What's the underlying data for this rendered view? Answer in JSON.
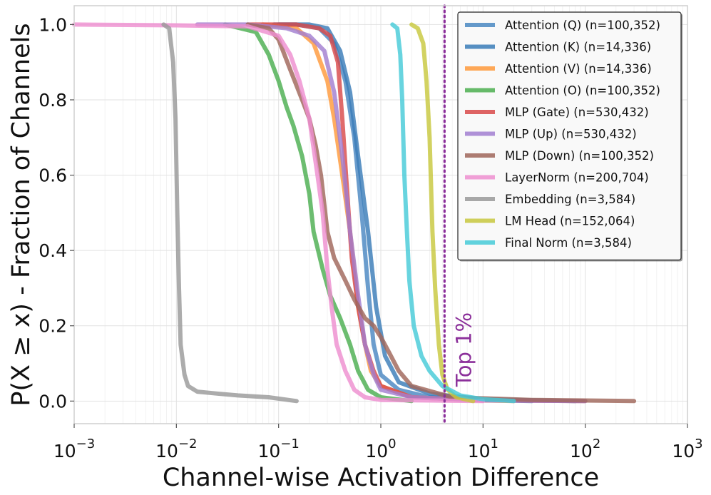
{
  "chart_data": {
    "type": "line",
    "xlabel": "Channel-wise Activation Difference",
    "ylabel": "P(X ≥ x) - Fraction of Channels",
    "x_scale": "log",
    "xlim": [
      0.001,
      1000
    ],
    "ylim": [
      -0.06,
      1.05
    ],
    "x_ticks": [
      {
        "value": 0.001,
        "base": "10",
        "exp": "−3"
      },
      {
        "value": 0.01,
        "base": "10",
        "exp": "−2"
      },
      {
        "value": 0.1,
        "base": "10",
        "exp": "−1"
      },
      {
        "value": 1,
        "base": "10",
        "exp": "0"
      },
      {
        "value": 10,
        "base": "10",
        "exp": "1"
      },
      {
        "value": 100,
        "base": "10",
        "exp": "2"
      },
      {
        "value": 1000,
        "base": "10",
        "exp": "3"
      }
    ],
    "y_ticks": [
      {
        "value": 0.0,
        "label": "0.0"
      },
      {
        "value": 0.2,
        "label": "0.2"
      },
      {
        "value": 0.4,
        "label": "0.4"
      },
      {
        "value": 0.6,
        "label": "0.6"
      },
      {
        "value": 0.8,
        "label": "0.8"
      },
      {
        "value": 1.0,
        "label": "1.0"
      }
    ],
    "grid": true,
    "legend_position": "top-right",
    "reference_line": {
      "x": 4.2,
      "label": "Top 1%",
      "color": "#8b2f9a",
      "style": "dotted"
    },
    "series": [
      {
        "name": "Attention (Q) (n=100,352)",
        "color": "#4a88c2",
        "points": [
          [
            0.09,
            1.0
          ],
          [
            0.15,
            1.0
          ],
          [
            0.25,
            0.99
          ],
          [
            0.35,
            0.95
          ],
          [
            0.45,
            0.85
          ],
          [
            0.55,
            0.7
          ],
          [
            0.65,
            0.5
          ],
          [
            0.75,
            0.3
          ],
          [
            0.85,
            0.15
          ],
          [
            1.0,
            0.07
          ],
          [
            1.5,
            0.03
          ],
          [
            3,
            0.01
          ],
          [
            10,
            0.003
          ],
          [
            30,
            0.0
          ]
        ]
      },
      {
        "name": "Attention (K) (n=14,336)",
        "color": "#3a7cb8",
        "points": [
          [
            0.1,
            1.0
          ],
          [
            0.2,
            1.0
          ],
          [
            0.3,
            0.99
          ],
          [
            0.4,
            0.93
          ],
          [
            0.5,
            0.82
          ],
          [
            0.6,
            0.65
          ],
          [
            0.75,
            0.45
          ],
          [
            0.9,
            0.25
          ],
          [
            1.1,
            0.12
          ],
          [
            1.5,
            0.05
          ],
          [
            3,
            0.02
          ],
          [
            10,
            0.005
          ],
          [
            80,
            0.0
          ]
        ]
      },
      {
        "name": "Attention (V) (n=14,336)",
        "color": "#ff9a3c",
        "points": [
          [
            0.07,
            1.0
          ],
          [
            0.15,
            0.99
          ],
          [
            0.22,
            0.95
          ],
          [
            0.3,
            0.85
          ],
          [
            0.35,
            0.75
          ],
          [
            0.42,
            0.6
          ],
          [
            0.5,
            0.45
          ],
          [
            0.55,
            0.35
          ],
          [
            0.6,
            0.25
          ],
          [
            0.7,
            0.15
          ],
          [
            0.8,
            0.08
          ],
          [
            1.0,
            0.04
          ],
          [
            2,
            0.01
          ],
          [
            10,
            0.002
          ],
          [
            20,
            0.0
          ]
        ]
      },
      {
        "name": "Attention (O) (n=100,352)",
        "color": "#4caf50",
        "points": [
          [
            0.03,
            1.0
          ],
          [
            0.06,
            0.98
          ],
          [
            0.08,
            0.92
          ],
          [
            0.1,
            0.85
          ],
          [
            0.12,
            0.78
          ],
          [
            0.14,
            0.73
          ],
          [
            0.17,
            0.65
          ],
          [
            0.2,
            0.55
          ],
          [
            0.22,
            0.45
          ],
          [
            0.27,
            0.35
          ],
          [
            0.32,
            0.28
          ],
          [
            0.4,
            0.22
          ],
          [
            0.5,
            0.15
          ],
          [
            0.6,
            0.08
          ],
          [
            0.75,
            0.03
          ],
          [
            1.0,
            0.01
          ],
          [
            2,
            0.0
          ]
        ]
      },
      {
        "name": "MLP (Gate) (n=530,432)",
        "color": "#d94a4a",
        "points": [
          [
            0.05,
            1.0
          ],
          [
            0.15,
            1.0
          ],
          [
            0.25,
            0.99
          ],
          [
            0.32,
            0.97
          ],
          [
            0.38,
            0.9
          ],
          [
            0.42,
            0.75
          ],
          [
            0.47,
            0.55
          ],
          [
            0.52,
            0.38
          ],
          [
            0.6,
            0.25
          ],
          [
            0.7,
            0.15
          ],
          [
            0.85,
            0.08
          ],
          [
            1.0,
            0.04
          ],
          [
            2,
            0.01
          ],
          [
            10,
            0.002
          ],
          [
            100,
            0.0
          ]
        ]
      },
      {
        "name": "MLP (Up) (n=530,432)",
        "color": "#a27fd1",
        "points": [
          [
            0.016,
            1.0
          ],
          [
            0.05,
            1.0
          ],
          [
            0.12,
            0.99
          ],
          [
            0.2,
            0.97
          ],
          [
            0.28,
            0.93
          ],
          [
            0.35,
            0.82
          ],
          [
            0.42,
            0.65
          ],
          [
            0.5,
            0.45
          ],
          [
            0.6,
            0.28
          ],
          [
            0.7,
            0.15
          ],
          [
            0.85,
            0.07
          ],
          [
            1.0,
            0.03
          ],
          [
            2,
            0.01
          ],
          [
            10,
            0.002
          ],
          [
            100,
            0.0
          ]
        ]
      },
      {
        "name": "MLP (Down) (n=100,352)",
        "color": "#a0665a",
        "points": [
          [
            0.05,
            1.0
          ],
          [
            0.08,
            0.99
          ],
          [
            0.1,
            0.96
          ],
          [
            0.13,
            0.88
          ],
          [
            0.17,
            0.8
          ],
          [
            0.2,
            0.75
          ],
          [
            0.23,
            0.68
          ],
          [
            0.26,
            0.6
          ],
          [
            0.3,
            0.45
          ],
          [
            0.35,
            0.38
          ],
          [
            0.45,
            0.32
          ],
          [
            0.55,
            0.27
          ],
          [
            0.7,
            0.22
          ],
          [
            0.85,
            0.2
          ],
          [
            1.0,
            0.17
          ],
          [
            1.2,
            0.13
          ],
          [
            1.5,
            0.08
          ],
          [
            2,
            0.04
          ],
          [
            5,
            0.01
          ],
          [
            30,
            0.003
          ],
          [
            300,
            0.0
          ]
        ]
      },
      {
        "name": "LayerNorm (n=200,704)",
        "color": "#ee8fd0",
        "points": [
          [
            0.001,
            1.0
          ],
          [
            0.01,
            0.998
          ],
          [
            0.05,
            0.995
          ],
          [
            0.1,
            0.97
          ],
          [
            0.13,
            0.92
          ],
          [
            0.16,
            0.85
          ],
          [
            0.2,
            0.75
          ],
          [
            0.24,
            0.6
          ],
          [
            0.27,
            0.5
          ],
          [
            0.3,
            0.35
          ],
          [
            0.33,
            0.25
          ],
          [
            0.37,
            0.15
          ],
          [
            0.45,
            0.08
          ],
          [
            0.55,
            0.03
          ],
          [
            0.7,
            0.01
          ],
          [
            1.0,
            0.003
          ],
          [
            10,
            0.0
          ]
        ]
      },
      {
        "name": "Embedding (n=3,584)",
        "color": "#9a9a9a",
        "points": [
          [
            0.0075,
            1.0
          ],
          [
            0.0085,
            0.99
          ],
          [
            0.0093,
            0.9
          ],
          [
            0.0098,
            0.75
          ],
          [
            0.0102,
            0.5
          ],
          [
            0.0106,
            0.3
          ],
          [
            0.011,
            0.15
          ],
          [
            0.012,
            0.07
          ],
          [
            0.013,
            0.04
          ],
          [
            0.016,
            0.025
          ],
          [
            0.025,
            0.02
          ],
          [
            0.04,
            0.015
          ],
          [
            0.08,
            0.01
          ],
          [
            0.15,
            0.0
          ]
        ]
      },
      {
        "name": "LM Head (n=152,064)",
        "color": "#c8c83e",
        "points": [
          [
            2.0,
            1.0
          ],
          [
            2.3,
            0.99
          ],
          [
            2.6,
            0.95
          ],
          [
            2.8,
            0.85
          ],
          [
            3.0,
            0.7
          ],
          [
            3.2,
            0.45
          ],
          [
            3.4,
            0.3
          ],
          [
            3.7,
            0.15
          ],
          [
            4.0,
            0.07
          ],
          [
            4.5,
            0.03
          ],
          [
            5.5,
            0.01
          ],
          [
            8,
            0.0
          ]
        ]
      },
      {
        "name": "Final Norm (n=3,584)",
        "color": "#47cbd8",
        "points": [
          [
            1.3,
            1.0
          ],
          [
            1.45,
            0.99
          ],
          [
            1.55,
            0.92
          ],
          [
            1.62,
            0.8
          ],
          [
            1.7,
            0.6
          ],
          [
            1.8,
            0.45
          ],
          [
            1.9,
            0.32
          ],
          [
            2.1,
            0.2
          ],
          [
            2.5,
            0.12
          ],
          [
            3.0,
            0.08
          ],
          [
            4.0,
            0.04
          ],
          [
            6,
            0.015
          ],
          [
            10,
            0.005
          ],
          [
            20,
            0.0
          ]
        ]
      }
    ]
  }
}
